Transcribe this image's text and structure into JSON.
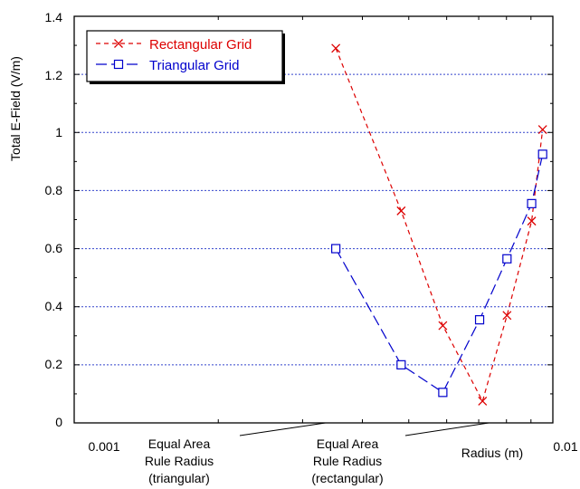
{
  "chart_data": {
    "type": "line",
    "x_scale": "log",
    "xlim": [
      0.001,
      0.01
    ],
    "ylim": [
      0,
      1.4
    ],
    "x_tick_labels": [
      "0.001",
      "0.01"
    ],
    "y_tick_labels": [
      "0",
      "0.2",
      "0.4",
      "0.6",
      "0.8",
      "1",
      "1.2",
      "1.4"
    ],
    "xlabel": "Radius (m)",
    "ylabel": "Total E-Field (V/m)",
    "grid": "horizontal dotted",
    "legend_position": "top-left",
    "series": [
      {
        "name": "Rectangular Grid",
        "color": "#dd0000",
        "marker": "x",
        "line": "short-dash",
        "x": [
          0.00352,
          0.00482,
          0.00589,
          0.00713,
          0.00802,
          0.00903,
          0.00952
        ],
        "y": [
          1.29,
          0.73,
          0.335,
          0.075,
          0.37,
          0.695,
          1.01
        ]
      },
      {
        "name": "Triangular Grid",
        "color": "#0000cc",
        "marker": "square",
        "line": "long-dash",
        "x": [
          0.00352,
          0.00482,
          0.00589,
          0.00703,
          0.00802,
          0.00903,
          0.00952
        ],
        "y": [
          0.6,
          0.2,
          0.105,
          0.355,
          0.565,
          0.755,
          0.925
        ]
      }
    ],
    "annotations": [
      {
        "lines": [
          "Equal Area",
          "Rule Radius",
          "(triangular)"
        ],
        "points_to_x": 0.00335
      },
      {
        "lines": [
          "Equal Area",
          "Rule Radius",
          "(rectangular)"
        ],
        "points_to_x": 0.00735
      }
    ]
  }
}
